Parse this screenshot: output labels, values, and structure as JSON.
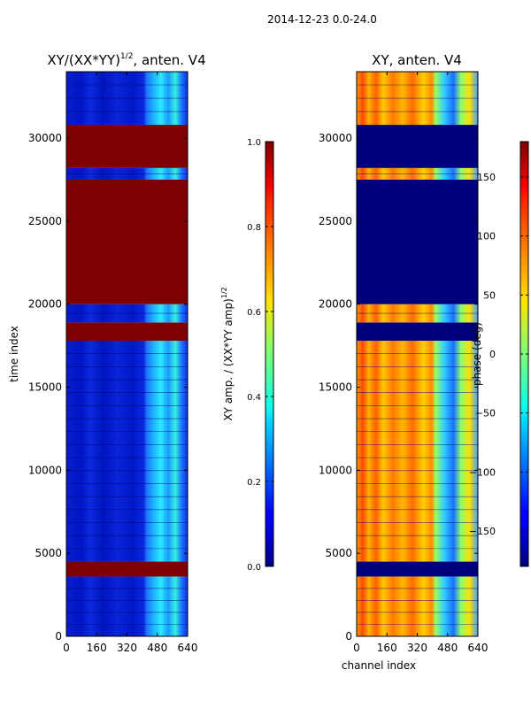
{
  "suptitle": "2014-12-23 0.0-24.0",
  "chart_data": [
    {
      "type": "heatmap",
      "title_main": "XY/(XX*YY)",
      "title_sup": "1/2",
      "title_suffix": ", anten. V4",
      "xlabel": "",
      "ylabel": "time index",
      "xlim": [
        0,
        640
      ],
      "ylim": [
        0,
        34000
      ],
      "xticks": [
        0,
        160,
        320,
        480,
        640
      ],
      "yticks": [
        0,
        5000,
        10000,
        15000,
        20000,
        25000,
        30000
      ],
      "rows": [
        {
          "from": 0,
          "to": 3600,
          "state": "data"
        },
        {
          "from": 3600,
          "to": 4500,
          "state": "flagged"
        },
        {
          "from": 4500,
          "to": 17800,
          "state": "data"
        },
        {
          "from": 17800,
          "to": 18900,
          "state": "flagged"
        },
        {
          "from": 18900,
          "to": 20000,
          "state": "data"
        },
        {
          "from": 20000,
          "to": 27500,
          "state": "flagged"
        },
        {
          "from": 27500,
          "to": 28200,
          "state": "data"
        },
        {
          "from": 28200,
          "to": 30800,
          "state": "flagged"
        },
        {
          "from": 30800,
          "to": 34000,
          "state": "data"
        }
      ],
      "colorbar": {
        "label_main": "XY amp. / (XX*YY amp)",
        "label_sup": "1/2",
        "range": [
          0.0,
          1.0
        ],
        "ticks": [
          "0.0",
          "0.2",
          "0.4",
          "0.6",
          "0.8",
          "1.0"
        ]
      }
    },
    {
      "type": "heatmap",
      "title_main": "XY, anten. V4",
      "xlabel": "channel index",
      "ylabel": "",
      "xlim": [
        0,
        640
      ],
      "ylim": [
        0,
        34000
      ],
      "xticks": [
        0,
        160,
        320,
        480,
        640
      ],
      "yticks": [
        0,
        5000,
        10000,
        15000,
        20000,
        25000,
        30000
      ],
      "rows": [
        {
          "from": 0,
          "to": 3600,
          "state": "data"
        },
        {
          "from": 3600,
          "to": 4500,
          "state": "flagged"
        },
        {
          "from": 4500,
          "to": 17800,
          "state": "data"
        },
        {
          "from": 17800,
          "to": 18900,
          "state": "flagged"
        },
        {
          "from": 18900,
          "to": 20000,
          "state": "data"
        },
        {
          "from": 20000,
          "to": 27500,
          "state": "flagged"
        },
        {
          "from": 27500,
          "to": 28200,
          "state": "data"
        },
        {
          "from": 28200,
          "to": 30800,
          "state": "flagged"
        },
        {
          "from": 30800,
          "to": 34000,
          "state": "data"
        }
      ],
      "colorbar": {
        "label_main": "phase (deg)",
        "range": [
          -180,
          180
        ],
        "ticks": [
          "-150",
          "-100",
          "-50",
          "0",
          "50",
          "100",
          "150"
        ]
      }
    }
  ],
  "colormap": "jet"
}
